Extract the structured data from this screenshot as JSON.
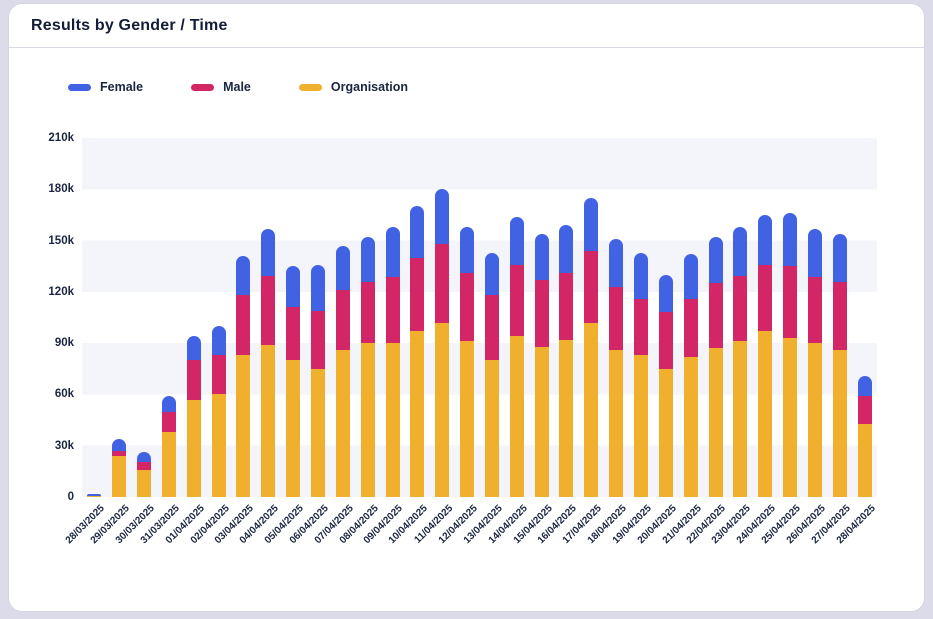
{
  "card": {
    "title": "Results by Gender / Time"
  },
  "colors": {
    "female": "#4262E4",
    "male": "#D32666",
    "organisation": "#F0B02E",
    "band": "#F3F5FA",
    "text_dark": "#1B2541",
    "card_bg": "#FFFFFF",
    "page_bg": "#DBDBE9"
  },
  "chart_data": {
    "type": "bar",
    "stacked": true,
    "title": "Results by Gender / Time",
    "xlabel": "",
    "ylabel": "",
    "ylim": [
      0,
      210000
    ],
    "grid": "horizontal-bands",
    "legend_position": "top-left",
    "ytick_labels": [
      "0",
      "30k",
      "60k",
      "90k",
      "120k",
      "150k",
      "180k",
      "210k"
    ],
    "ytick_values": [
      0,
      30000,
      60000,
      90000,
      120000,
      150000,
      180000,
      210000
    ],
    "categories": [
      "28/03/2025",
      "29/03/2025",
      "30/03/2025",
      "31/03/2025",
      "01/04/2025",
      "02/04/2025",
      "03/04/2025",
      "04/04/2025",
      "05/04/2025",
      "06/04/2025",
      "07/04/2025",
      "08/04/2025",
      "09/04/2025",
      "10/04/2025",
      "11/04/2025",
      "12/04/2025",
      "13/04/2025",
      "14/04/2025",
      "15/04/2025",
      "16/04/2025",
      "17/04/2025",
      "18/04/2025",
      "19/04/2025",
      "20/04/2025",
      "21/04/2025",
      "22/04/2025",
      "23/04/2025",
      "24/04/2025",
      "25/04/2025",
      "26/04/2025",
      "27/04/2025",
      "28/04/2025"
    ],
    "series": [
      {
        "name": "Female",
        "color": "#4262E4",
        "stack_position": "top",
        "values": [
          1000,
          7000,
          6000,
          9000,
          14000,
          17000,
          23000,
          28000,
          24000,
          27000,
          26000,
          26000,
          29000,
          30000,
          32000,
          27000,
          25000,
          28000,
          27000,
          28000,
          31000,
          28000,
          27000,
          22000,
          26000,
          27000,
          29000,
          29000,
          31000,
          28000,
          28000,
          12000
        ]
      },
      {
        "name": "Male",
        "color": "#D32666",
        "stack_position": "middle",
        "values": [
          400,
          3000,
          4500,
          12000,
          23000,
          23000,
          35000,
          40000,
          31000,
          34000,
          35000,
          36000,
          39000,
          43000,
          46000,
          40000,
          38000,
          42000,
          39000,
          39000,
          42000,
          37000,
          33000,
          33000,
          34000,
          38000,
          38000,
          39000,
          42000,
          39000,
          40000,
          16000
        ]
      },
      {
        "name": "Organisation",
        "color": "#F0B02E",
        "stack_position": "bottom",
        "values": [
          400,
          24000,
          16000,
          38000,
          57000,
          60000,
          83000,
          89000,
          80000,
          75000,
          86000,
          90000,
          90000,
          97000,
          102000,
          91000,
          80000,
          94000,
          88000,
          92000,
          102000,
          86000,
          83000,
          75000,
          82000,
          87000,
          91000,
          97000,
          93000,
          90000,
          86000,
          43000
        ]
      }
    ]
  }
}
